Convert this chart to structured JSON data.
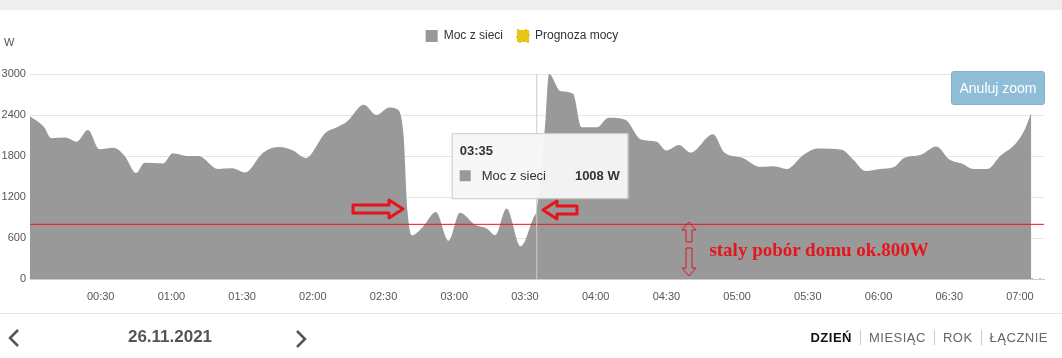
{
  "chart_data": {
    "type": "area",
    "ylabel": "W",
    "legend": "top",
    "grid": "y",
    "xlim": [
      0,
      7.17
    ],
    "xticks": [
      {
        "value": 0.5,
        "label": "00:30"
      },
      {
        "value": 1,
        "label": "01:00"
      },
      {
        "value": 1.5,
        "label": "01:30"
      },
      {
        "value": 2,
        "label": "02:00"
      },
      {
        "value": 2.5,
        "label": "02:30"
      },
      {
        "value": 3,
        "label": "03:00"
      },
      {
        "value": 3.5,
        "label": "03:30"
      },
      {
        "value": 4,
        "label": "04:00"
      },
      {
        "value": 4.5,
        "label": "04:30"
      },
      {
        "value": 5,
        "label": "05:00"
      },
      {
        "value": 5.5,
        "label": "05:30"
      },
      {
        "value": 6,
        "label": "06:00"
      },
      {
        "value": 6.5,
        "label": "06:30"
      },
      {
        "value": 7,
        "label": "07:00"
      }
    ],
    "ylim": [
      0,
      3000
    ],
    "yticks": [
      0,
      600,
      1200,
      1800,
      2400,
      3000
    ],
    "series": [
      {
        "name": "Moc z sieci",
        "color": "#999999",
        "x": [
          0,
          0.1,
          0.15,
          0.25,
          0.33,
          0.41,
          0.49,
          0.59,
          0.67,
          0.75,
          0.81,
          0.94,
          1.01,
          1.11,
          1.19,
          1.33,
          1.43,
          1.52,
          1.65,
          1.76,
          1.86,
          1.95,
          2.09,
          2.17,
          2.24,
          2.36,
          2.45,
          2.54,
          2.59,
          2.64,
          2.67,
          2.7,
          2.78,
          2.87,
          2.96,
          3.04,
          3.15,
          3.23,
          3.29,
          3.37,
          3.47,
          3.56,
          3.583,
          3.64,
          3.67,
          3.75,
          3.84,
          3.9,
          4.01,
          4.09,
          4.21,
          4.32,
          4.43,
          4.5,
          4.59,
          4.67,
          4.83,
          4.91,
          5.04,
          5.16,
          5.26,
          5.35,
          5.47,
          5.57,
          5.74,
          5.82,
          5.91,
          6.01,
          6.11,
          6.18,
          6.3,
          6.41,
          6.5,
          6.59,
          6.67,
          6.77,
          6.86,
          6.96,
          7.03,
          7.08
        ],
        "values": [
          2380,
          2220,
          2060,
          2070,
          2010,
          2180,
          1900,
          1920,
          1800,
          1550,
          1700,
          1690,
          1840,
          1800,
          1800,
          1610,
          1620,
          1560,
          1850,
          1930,
          1880,
          1770,
          2140,
          2220,
          2300,
          2550,
          2400,
          2510,
          2490,
          2140,
          980,
          640,
          770,
          980,
          560,
          970,
          790,
          740,
          640,
          1030,
          480,
          900,
          1008,
          2190,
          3000,
          2750,
          2710,
          2220,
          2220,
          2360,
          2330,
          2040,
          2010,
          1880,
          1960,
          1850,
          2120,
          1850,
          1770,
          1640,
          1650,
          1610,
          1820,
          1910,
          1890,
          1750,
          1580,
          1610,
          1640,
          1770,
          1820,
          1940,
          1750,
          1690,
          1610,
          1610,
          1800,
          1960,
          2170,
          2430
        ]
      },
      {
        "name": "Prognoza mocy",
        "type": "line",
        "color": "#e6c619",
        "line_style": "dotted",
        "x": [
          7.08,
          7.15
        ],
        "values": [
          0,
          0
        ]
      }
    ],
    "ref_lines": [
      {
        "axis": "y",
        "value": 800,
        "label": "staly pobór domu ok.800W",
        "color": "#e8141b",
        "line_style": "solid"
      },
      {
        "axis": "x",
        "value": 3.583,
        "label": null,
        "color": "#cccccc",
        "line_style": "solid"
      }
    ],
    "annotations": [
      "03:35",
      "1008 W",
      "Anuluj zoom",
      "26.11.2021",
      "DZIEŃ",
      "MIESIĄC",
      "ROK",
      "ŁĄCZNIE"
    ]
  }
}
